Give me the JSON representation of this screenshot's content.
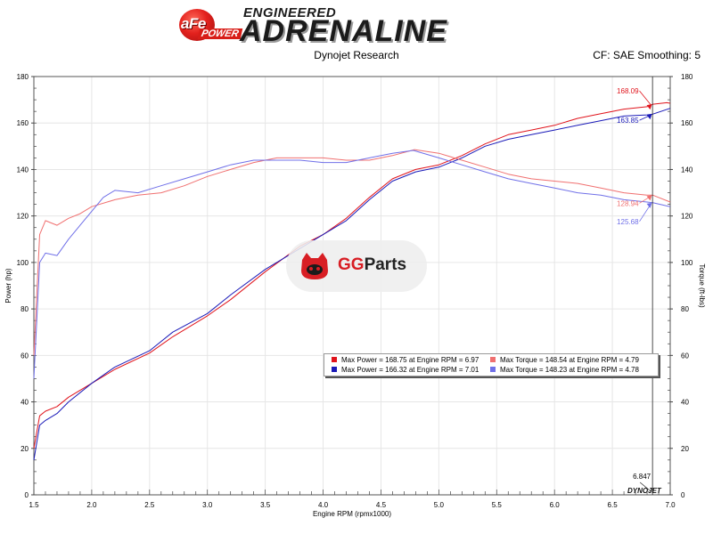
{
  "header": {
    "brand_logo": "aFe",
    "brand_logo_sub": "POWER",
    "tagline_top": "ENGINEERED",
    "tagline_main": "ADRENALINE",
    "subtitle": "Dynojet Research",
    "cf_info": "CF: SAE Smoothing: 5"
  },
  "watermark": {
    "icon": "gg-mascot-icon",
    "text_a": "GG",
    "text_b": "Parts"
  },
  "footer_logo": "DYNOJET",
  "colors": {
    "run1_power": "#e0141c",
    "run2_power": "#1a1ab8",
    "run1_torque": "#f07070",
    "run2_torque": "#7070e8",
    "axis": "#444444",
    "grid": "#e6e6e6"
  },
  "legend": [
    {
      "label": "Max Power = 168.75 at Engine RPM = 6.97",
      "color": "#e0141c"
    },
    {
      "label": "Max Torque = 148.54 at Engine RPM = 4.79",
      "color": "#f07070"
    },
    {
      "label": "Max Power = 166.32 at Engine RPM = 7.01",
      "color": "#1a1ab8"
    },
    {
      "label": "Max Torque = 148.23 at Engine RPM = 4.78",
      "color": "#7070e8"
    }
  ],
  "chart_data": {
    "type": "line",
    "xlabel": "Engine RPM (rpmx1000)",
    "ylabel": "Power (hp)",
    "y2label": "Torque (ft-lbs)",
    "xlim": [
      1.5,
      7.0
    ],
    "ylim": [
      0,
      180
    ],
    "y2lim": [
      0,
      180
    ],
    "xticks": [
      "1.5",
      "2.0",
      "2.5",
      "3.0",
      "3.5",
      "4.0",
      "4.5",
      "5.0",
      "5.5",
      "6.0",
      "6.5",
      "7.0"
    ],
    "yticks": [
      "0",
      "20",
      "40",
      "60",
      "80",
      "100",
      "120",
      "140",
      "160",
      "180"
    ],
    "grid": true,
    "cursor": {
      "x": 6.847,
      "label": "6.847"
    },
    "series": [
      {
        "name": "Max Power = 168.75 at Engine RPM = 6.97",
        "axis": "left",
        "color": "#e0141c",
        "x": [
          1.5,
          1.55,
          1.6,
          1.7,
          1.8,
          2.0,
          2.2,
          2.5,
          2.7,
          3.0,
          3.2,
          3.5,
          3.8,
          4.0,
          4.2,
          4.4,
          4.6,
          4.8,
          5.0,
          5.2,
          5.4,
          5.6,
          5.8,
          6.0,
          6.2,
          6.4,
          6.6,
          6.8,
          6.85,
          6.97,
          7.0
        ],
        "y": [
          20,
          34,
          36,
          38,
          42,
          48,
          54,
          61,
          68,
          77,
          84,
          96,
          107,
          112,
          119,
          128,
          136,
          140,
          142,
          146,
          151,
          155,
          157,
          159,
          162,
          164,
          166,
          167,
          168.09,
          168.75,
          168.5
        ]
      },
      {
        "name": "Max Power = 166.32 at Engine RPM = 7.01",
        "axis": "left",
        "color": "#1a1ab8",
        "x": [
          1.5,
          1.55,
          1.6,
          1.7,
          1.8,
          2.0,
          2.2,
          2.5,
          2.7,
          3.0,
          3.2,
          3.5,
          3.8,
          4.0,
          4.2,
          4.4,
          4.6,
          4.8,
          5.0,
          5.2,
          5.4,
          5.6,
          5.8,
          6.0,
          6.2,
          6.4,
          6.6,
          6.8,
          6.85,
          7.0
        ],
        "y": [
          15,
          30,
          32,
          35,
          40,
          48,
          55,
          62,
          70,
          78,
          86,
          97,
          106,
          112,
          118,
          127,
          135,
          139,
          141,
          145,
          150,
          153,
          155,
          157,
          159,
          161,
          163,
          163.5,
          163.85,
          166.32
        ]
      },
      {
        "name": "Max Torque = 148.54 at Engine RPM = 4.79",
        "axis": "right",
        "color": "#f07070",
        "x": [
          1.5,
          1.55,
          1.6,
          1.7,
          1.8,
          1.9,
          2.0,
          2.2,
          2.4,
          2.6,
          2.8,
          3.0,
          3.2,
          3.4,
          3.6,
          3.8,
          4.0,
          4.2,
          4.4,
          4.6,
          4.79,
          5.0,
          5.2,
          5.4,
          5.6,
          5.8,
          6.0,
          6.2,
          6.4,
          6.6,
          6.8,
          6.85,
          7.0
        ],
        "y": [
          60,
          112,
          118,
          116,
          119,
          121,
          124,
          127,
          129,
          130,
          133,
          137,
          140,
          143,
          145,
          145,
          145,
          144,
          144,
          146,
          148.54,
          147,
          144,
          141,
          138,
          136,
          135,
          134,
          132,
          130,
          129,
          128.94,
          126
        ]
      },
      {
        "name": "Max Torque = 148.23 at Engine RPM = 4.78",
        "axis": "right",
        "color": "#7070e8",
        "x": [
          1.5,
          1.55,
          1.6,
          1.7,
          1.8,
          1.9,
          2.0,
          2.1,
          2.2,
          2.4,
          2.6,
          2.8,
          3.0,
          3.2,
          3.4,
          3.6,
          3.8,
          4.0,
          4.2,
          4.4,
          4.6,
          4.78,
          5.0,
          5.2,
          5.4,
          5.6,
          5.8,
          6.0,
          6.2,
          6.4,
          6.6,
          6.8,
          6.85,
          7.0
        ],
        "y": [
          50,
          100,
          104,
          103,
          110,
          116,
          122,
          128,
          131,
          130,
          133,
          136,
          139,
          142,
          144,
          144,
          144,
          143,
          143,
          145,
          147,
          148.23,
          145,
          142,
          139,
          136,
          134,
          132,
          130,
          129,
          127,
          126,
          125.68,
          124
        ]
      }
    ],
    "annotations": [
      {
        "text": "168.09",
        "color": "#e0141c",
        "x": 6.85,
        "y": 168.09
      },
      {
        "text": "163.85",
        "color": "#1a1ab8",
        "x": 6.85,
        "y": 163.85
      },
      {
        "text": "128.94",
        "color": "#f07070",
        "x": 6.85,
        "y": 128.94
      },
      {
        "text": "125.68",
        "color": "#7070e8",
        "x": 6.85,
        "y": 125.68
      }
    ]
  }
}
